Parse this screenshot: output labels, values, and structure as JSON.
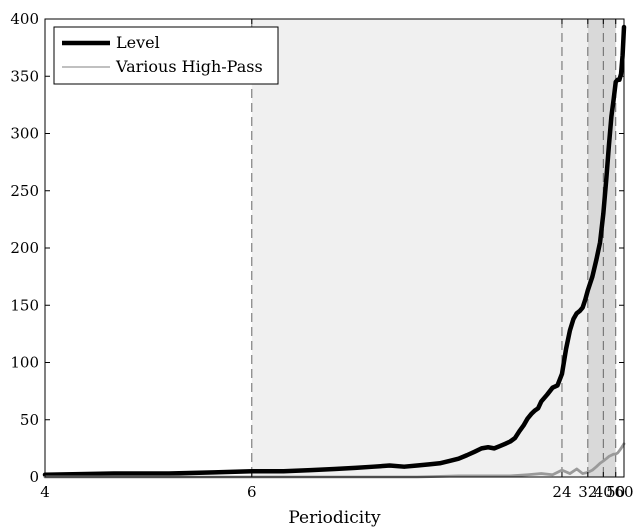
{
  "chart_data": {
    "type": "line",
    "title": "",
    "xlabel": "Periodicity",
    "ylabel": "",
    "xscale": "reciprocal",
    "xlim": [
      4,
      60
    ],
    "ylim": [
      0,
      400
    ],
    "x_ticks": [
      4,
      6,
      24,
      32,
      40,
      50,
      60
    ],
    "y_ticks": [
      0,
      50,
      100,
      150,
      200,
      250,
      300,
      350,
      400
    ],
    "grid": false,
    "legend_position": "top-left",
    "bands": [
      {
        "from": 6,
        "to": 32,
        "color": "#f0f0f0"
      },
      {
        "from": 32,
        "to": 50,
        "color": "#d9d9d9"
      }
    ],
    "vlines": [
      6,
      24,
      32,
      40,
      50
    ],
    "series": [
      {
        "name": "Level",
        "color": "#000000",
        "x": [
          4,
          4.5,
          5,
          5.5,
          6,
          6.5,
          7,
          7.5,
          8,
          8.5,
          9,
          9.5,
          10,
          10.5,
          11,
          11.5,
          12,
          12.5,
          13,
          13.5,
          14,
          14.5,
          15,
          15.5,
          16,
          16.5,
          17,
          17.5,
          18,
          18.5,
          19,
          19.5,
          20,
          21,
          22,
          23,
          24,
          25,
          26,
          27,
          28,
          29,
          30,
          31,
          32,
          34,
          36,
          38,
          40,
          42,
          44,
          46,
          48,
          50,
          52,
          54,
          56,
          58,
          60
        ],
        "y": [
          2,
          3,
          3,
          4,
          5,
          5,
          6,
          7,
          8,
          9,
          10,
          9,
          10,
          11,
          12,
          14,
          16,
          19,
          22,
          25,
          26,
          25,
          27,
          29,
          31,
          34,
          40,
          45,
          51,
          55,
          58,
          60,
          66,
          72,
          78,
          80,
          90,
          112,
          128,
          138,
          143,
          145,
          148,
          155,
          163,
          175,
          190,
          205,
          230,
          260,
          290,
          315,
          330,
          345,
          347,
          347,
          352,
          368,
          393
        ]
      },
      {
        "name": "Various High-Pass",
        "color": "#9a9a9a",
        "x": [
          4,
          6,
          8,
          10,
          12,
          14,
          16,
          18,
          20,
          22,
          24,
          26,
          28,
          30,
          32,
          34,
          36,
          38,
          40,
          42,
          44,
          46,
          48,
          50,
          52,
          54,
          56,
          58,
          60
        ],
        "y": [
          0,
          0,
          0,
          0,
          1,
          1,
          1,
          2,
          3,
          2,
          6,
          3,
          7,
          3,
          4,
          6,
          9,
          12,
          14,
          16,
          18,
          19,
          20,
          20,
          21,
          23,
          25,
          27,
          29
        ]
      }
    ]
  }
}
